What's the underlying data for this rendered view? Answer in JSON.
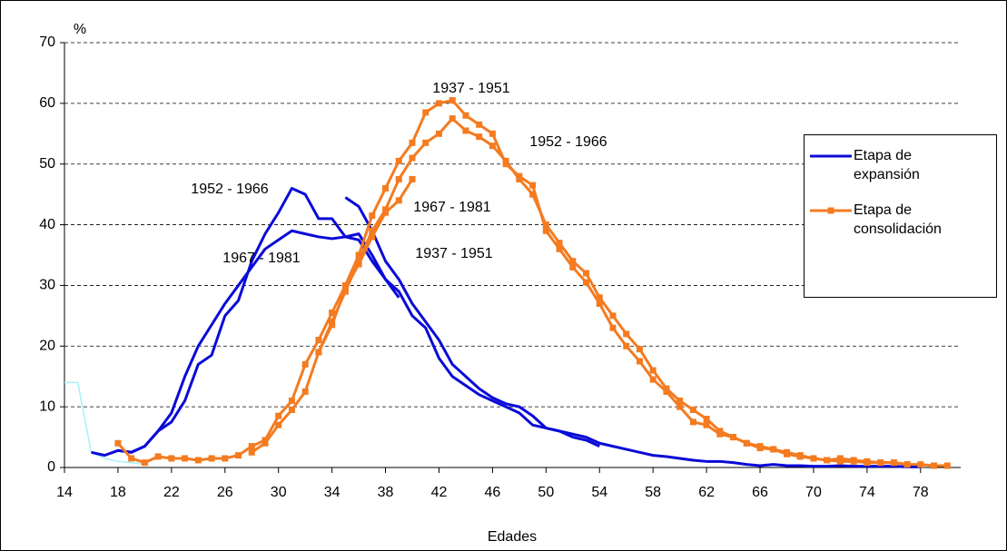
{
  "chart_data": {
    "type": "line",
    "y_unit": "%",
    "x_label": "Edades",
    "x": [
      14,
      15,
      16,
      17,
      18,
      19,
      20,
      21,
      22,
      23,
      24,
      25,
      26,
      27,
      28,
      29,
      30,
      31,
      32,
      33,
      34,
      35,
      36,
      37,
      38,
      39,
      40,
      41,
      42,
      43,
      44,
      45,
      46,
      47,
      48,
      49,
      50,
      51,
      52,
      53,
      54,
      55,
      56,
      57,
      58,
      59,
      60,
      61,
      62,
      63,
      64,
      65,
      66,
      67,
      68,
      69,
      70,
      71,
      72,
      73,
      74,
      75,
      76,
      77,
      78,
      79,
      80
    ],
    "xlim": [
      14,
      81
    ],
    "xticks": [
      14,
      18,
      22,
      26,
      30,
      34,
      38,
      42,
      46,
      50,
      54,
      58,
      62,
      66,
      70,
      74,
      78
    ],
    "ylim": [
      0,
      70
    ],
    "yticks": [
      0,
      10,
      20,
      30,
      40,
      50,
      60,
      70
    ],
    "grid": true,
    "legend": [
      {
        "name": "Etapa de expansión",
        "color": "#0a0ad8",
        "marker": "none"
      },
      {
        "name": "Etapa de consolidación",
        "color": "#f47b20",
        "marker": "square"
      }
    ],
    "lines": [
      {
        "color": "#a8f0f8",
        "marker": "none",
        "values": [
          14,
          14,
          2.5,
          1.5,
          1,
          0.8,
          0.5,
          null,
          null,
          null,
          null,
          null,
          null,
          null,
          null,
          null,
          null,
          null,
          null,
          null,
          null,
          null,
          null,
          null,
          null,
          null,
          null,
          null,
          null,
          null,
          null,
          null,
          null,
          null,
          null,
          null,
          null,
          null,
          null,
          null,
          null,
          null,
          null,
          null,
          null,
          null,
          null,
          null,
          null,
          null,
          null,
          null,
          null,
          null,
          null,
          null,
          null,
          null,
          null,
          null,
          null,
          null,
          null,
          null,
          null,
          null,
          null
        ]
      },
      {
        "color": "#0a0ad8",
        "marker": "none",
        "values": [
          null,
          null,
          2.5,
          2,
          2.8,
          2.5,
          3.5,
          6,
          7.5,
          11,
          17,
          18.5,
          25,
          27.5,
          34,
          38.5,
          42,
          46,
          45,
          41,
          41,
          38,
          37.5,
          34,
          31,
          29,
          25,
          23,
          18,
          15,
          13.5,
          12,
          11,
          10,
          9,
          7,
          6.5,
          6,
          5,
          4.5,
          3.5,
          null,
          null,
          null,
          null,
          null,
          null,
          null,
          null,
          null,
          null,
          null,
          null,
          null,
          null,
          null,
          null,
          null,
          null,
          null,
          null,
          null,
          null,
          null,
          null,
          null,
          null
        ]
      },
      {
        "color": "#0a0ad8",
        "marker": "none",
        "values": [
          null,
          null,
          null,
          null,
          2.8,
          2.5,
          3.5,
          6,
          9,
          15,
          20,
          23.5,
          27,
          30,
          33,
          36,
          37.5,
          39,
          38.5,
          38,
          37.7,
          38,
          38.5,
          35,
          31,
          28,
          null,
          null,
          null,
          null,
          null,
          null,
          null,
          null,
          null,
          null,
          null,
          null,
          null,
          null,
          null,
          null,
          null,
          null,
          null,
          null,
          null,
          null,
          null,
          null,
          null,
          null,
          null,
          null,
          null,
          null,
          null,
          null,
          null,
          null,
          null,
          null,
          null,
          null,
          null,
          null,
          null
        ]
      },
      {
        "color": "#0a0ad8",
        "marker": "none",
        "values": [
          null,
          null,
          null,
          null,
          null,
          null,
          null,
          null,
          null,
          null,
          null,
          null,
          null,
          null,
          null,
          null,
          null,
          null,
          null,
          null,
          null,
          44.5,
          43,
          39,
          34,
          31,
          27,
          24,
          21,
          17,
          15,
          13,
          11.5,
          10.5,
          10,
          8.5,
          6.5,
          6,
          5.5,
          5,
          4,
          3.5,
          3,
          2.5,
          2,
          1.8,
          1.5,
          1.2,
          1,
          1,
          0.8,
          0.5,
          0.3,
          0.5,
          0.3,
          0.3,
          0.2,
          0.2,
          0.3,
          0.2,
          0.2,
          0.2,
          0.2,
          0.1,
          0.1,
          null,
          null
        ]
      },
      {
        "color": "#f47b20",
        "marker": "square",
        "values": [
          null,
          null,
          null,
          null,
          4,
          1.5,
          0.8,
          1.8,
          1.5,
          1.5,
          1.2,
          1.5,
          1.5,
          2,
          3.5,
          4.5,
          8.5,
          11,
          17,
          21,
          25.5,
          30,
          35,
          41.5,
          46,
          50.5,
          53.5,
          58.5,
          60,
          60.5,
          58,
          56.5,
          55,
          50,
          48,
          46.5,
          39,
          36,
          33,
          30.5,
          27,
          23,
          20,
          17.5,
          14.5,
          12.5,
          10,
          7.5,
          7,
          5.5,
          5,
          4,
          3.2,
          3,
          2.5,
          2,
          1.5,
          1.2,
          1,
          1,
          0.8,
          0.8,
          0.8,
          0.5,
          0.5,
          0.3,
          0.3
        ]
      },
      {
        "color": "#f47b20",
        "marker": "square",
        "values": [
          null,
          null,
          null,
          null,
          null,
          null,
          null,
          null,
          null,
          null,
          null,
          null,
          null,
          null,
          2.5,
          4,
          7,
          9.5,
          12.5,
          19,
          24,
          29,
          34,
          39,
          42.5,
          47.5,
          51,
          53.5,
          55,
          57.5,
          55.5,
          54.5,
          53,
          50.5,
          47.5,
          45,
          40,
          37,
          34,
          32,
          28,
          25,
          22,
          19.5,
          16,
          13,
          11,
          9.5,
          8,
          6,
          5,
          4,
          3.5,
          3,
          2.2,
          1.8,
          1.5,
          1.2,
          1.5,
          1.2,
          1,
          0.8,
          0.8,
          0.5,
          null,
          null,
          null
        ]
      },
      {
        "color": "#f47b20",
        "marker": "square",
        "values": [
          null,
          null,
          null,
          null,
          null,
          null,
          null,
          null,
          null,
          null,
          null,
          null,
          null,
          null,
          null,
          null,
          null,
          null,
          null,
          19,
          23.5,
          29.5,
          33.5,
          38,
          42,
          44,
          47.5,
          null,
          null,
          null,
          null,
          null,
          null,
          null,
          null,
          null,
          null,
          null,
          null,
          null,
          null,
          null,
          null,
          null,
          null,
          null,
          null,
          null,
          null,
          null,
          null,
          null,
          null,
          null,
          null,
          null,
          null,
          null,
          null,
          null,
          null,
          null,
          null,
          null,
          null,
          null,
          null
        ]
      }
    ],
    "annotations": [
      {
        "text": "1937 - 1951",
        "color": "#000000"
      },
      {
        "text": "1952 - 1966",
        "color": "#000000"
      },
      {
        "text": "1967 - 1981",
        "color": "#000000"
      },
      {
        "text": "1952 - 1966",
        "color": "#1a1aff"
      },
      {
        "text": "1967 - 1981",
        "color": "#1a1aff"
      },
      {
        "text": "1937 - 1951",
        "color": "#1a1aff"
      }
    ]
  }
}
